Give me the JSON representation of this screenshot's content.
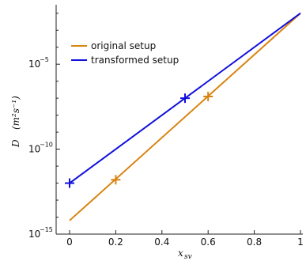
{
  "chart_data": {
    "type": "line",
    "xlabel": "x",
    "xlabel_sub": "sv",
    "ylabel": "D",
    "ylabel_unit": "(m²s⁻¹)",
    "xlim": [
      0,
      1
    ],
    "ylim_log10": [
      -15,
      -1.5
    ],
    "y_scale": "log",
    "grid": false,
    "legend_position": "upper-left",
    "x_ticks": [
      "0",
      "0.2",
      "0.4",
      "0.6",
      "0.8",
      "1"
    ],
    "y_tick_base": "10",
    "y_ticks": [
      {
        "exp": -5,
        "label_exp": "−5"
      },
      {
        "exp": -10,
        "label_exp": "−10"
      },
      {
        "exp": -15,
        "label_exp": "−15"
      }
    ],
    "series": [
      {
        "name": "original setup",
        "color": "#d98310",
        "x": [
          0,
          1
        ],
        "log10_y": [
          -14.2,
          -2.0
        ],
        "markers": [
          {
            "x": 0.2,
            "log10_y": -11.8
          },
          {
            "x": 0.6,
            "log10_y": -6.9
          }
        ]
      },
      {
        "name": "transformed setup",
        "color": "#1010dd",
        "x": [
          0,
          1
        ],
        "log10_y": [
          -12.0,
          -2.0
        ],
        "markers": [
          {
            "x": 0.0,
            "log10_y": -12.0
          },
          {
            "x": 0.5,
            "log10_y": -7.0
          }
        ]
      }
    ]
  }
}
